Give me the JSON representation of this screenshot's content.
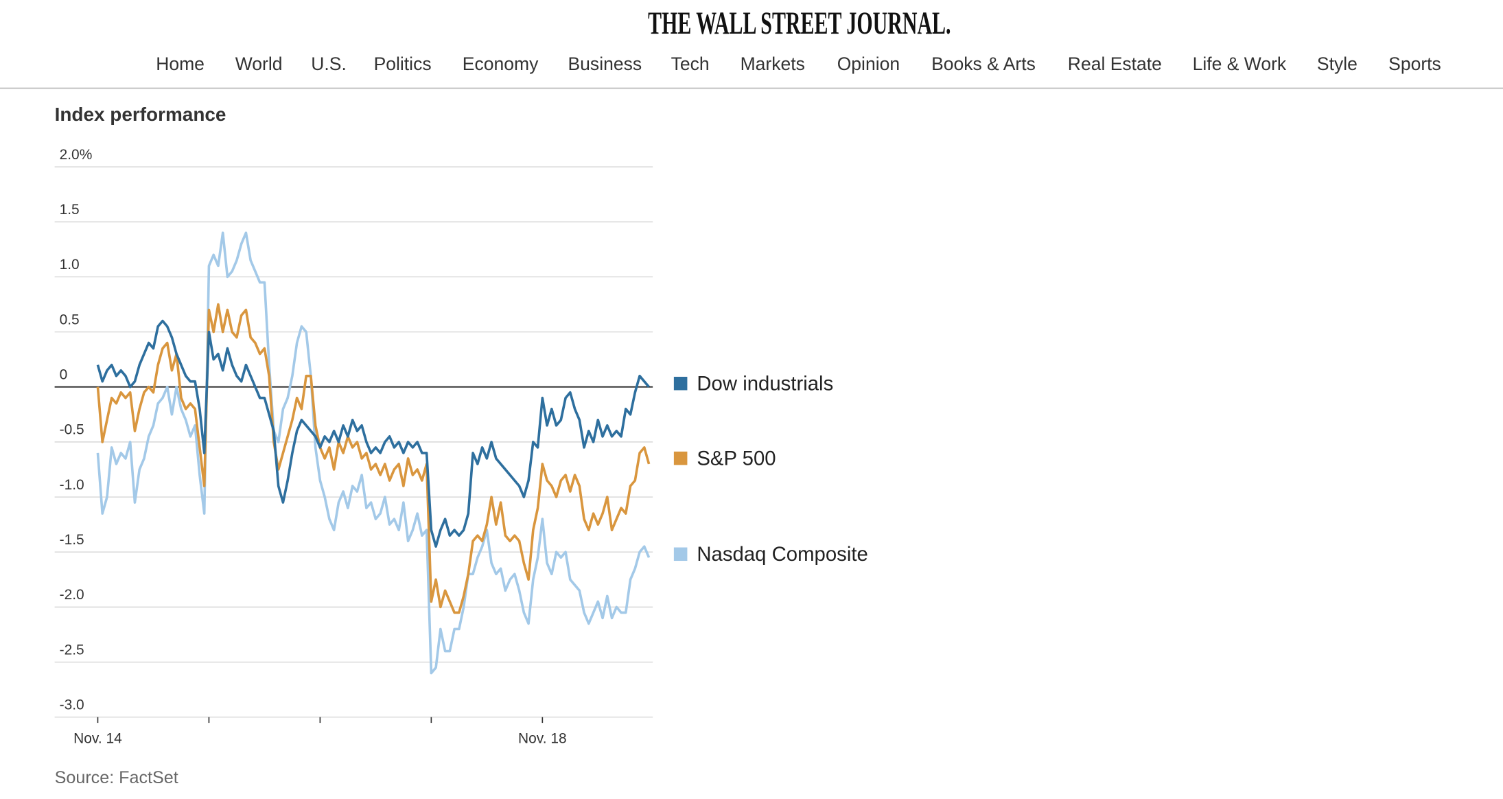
{
  "header": {
    "masthead": "THE WALL STREET JOURNAL.",
    "nav": [
      "Home",
      "World",
      "U.S.",
      "Politics",
      "Economy",
      "Business",
      "Tech",
      "Markets",
      "Opinion",
      "Books & Arts",
      "Real Estate",
      "Life & Work",
      "Style",
      "Sports"
    ]
  },
  "chart_data": {
    "type": "line",
    "title": "Index performance",
    "source": "Source: FactSet",
    "categories": [
      "Nov. 14",
      null,
      null,
      null,
      null,
      null,
      null,
      null,
      null,
      null,
      null,
      null,
      null,
      null,
      null,
      null,
      null,
      null,
      null,
      null,
      null,
      null,
      null,
      null,
      null,
      null,
      null,
      null,
      null,
      null,
      null,
      null,
      null,
      null,
      null,
      null,
      null,
      null,
      null,
      null,
      null,
      null,
      null,
      null,
      null,
      null,
      null,
      null,
      null,
      null,
      null,
      null,
      null,
      null,
      null,
      null,
      null,
      null,
      null,
      null,
      null,
      null,
      null,
      null,
      null,
      null,
      null,
      null,
      null,
      null,
      null,
      null,
      null,
      null,
      null,
      null,
      null,
      null,
      null,
      null,
      null,
      null,
      null,
      null,
      null,
      null,
      null,
      null,
      null,
      null,
      null,
      null,
      null,
      null,
      null,
      null,
      "Nov. 18",
      null,
      null,
      null,
      null,
      null,
      null,
      null,
      null,
      null,
      null,
      null,
      null,
      null,
      null,
      null,
      null,
      null,
      null,
      null,
      null,
      null,
      null,
      null
    ],
    "series": [
      {
        "name": "Dow industrials",
        "color": "#2e6f9e",
        "values": [
          0.2,
          0.05,
          0.15,
          0.2,
          0.1,
          0.15,
          0.1,
          0.0,
          0.05,
          0.2,
          0.3,
          0.4,
          0.35,
          0.55,
          0.6,
          0.55,
          0.45,
          0.3,
          0.2,
          0.1,
          0.05,
          0.05,
          -0.2,
          -0.6,
          0.5,
          0.25,
          0.3,
          0.15,
          0.35,
          0.2,
          0.1,
          0.05,
          0.2,
          0.1,
          0.0,
          -0.1,
          -0.1,
          -0.25,
          -0.4,
          -0.9,
          -1.05,
          -0.85,
          -0.6,
          -0.4,
          -0.3,
          -0.35,
          -0.4,
          -0.45,
          -0.55,
          -0.45,
          -0.5,
          -0.4,
          -0.5,
          -0.35,
          -0.45,
          -0.3,
          -0.4,
          -0.35,
          -0.5,
          -0.6,
          -0.55,
          -0.6,
          -0.5,
          -0.45,
          -0.55,
          -0.5,
          -0.6,
          -0.5,
          -0.55,
          -0.5,
          -0.6,
          -0.6,
          -1.3,
          -1.45,
          -1.3,
          -1.2,
          -1.35,
          -1.3,
          -1.35,
          -1.3,
          -1.15,
          -0.6,
          -0.7,
          -0.55,
          -0.65,
          -0.5,
          -0.65,
          -0.7,
          -0.75,
          -0.8,
          -0.85,
          -0.9,
          -1.0,
          -0.85,
          -0.5,
          -0.55,
          -0.1,
          -0.35,
          -0.2,
          -0.35,
          -0.3,
          -0.1,
          -0.05,
          -0.2,
          -0.3,
          -0.55,
          -0.4,
          -0.5,
          -0.3,
          -0.45,
          -0.35,
          -0.45,
          -0.4,
          -0.45,
          -0.2,
          -0.25,
          -0.05,
          0.1,
          0.05,
          0
        ]
      },
      {
        "name": "S&P 500",
        "color": "#d9963e",
        "values": [
          0,
          -0.5,
          -0.3,
          -0.1,
          -0.15,
          -0.05,
          -0.1,
          -0.05,
          -0.4,
          -0.2,
          -0.05,
          0.0,
          -0.05,
          0.2,
          0.35,
          0.4,
          0.15,
          0.3,
          -0.1,
          -0.2,
          -0.15,
          -0.2,
          -0.55,
          -0.9,
          0.7,
          0.5,
          0.75,
          0.5,
          0.7,
          0.5,
          0.45,
          0.65,
          0.7,
          0.45,
          0.4,
          0.3,
          0.35,
          0.1,
          -0.5,
          -0.75,
          -0.6,
          -0.45,
          -0.3,
          -0.1,
          -0.2,
          0.1,
          0.1,
          -0.35,
          -0.55,
          -0.65,
          -0.55,
          -0.75,
          -0.5,
          -0.6,
          -0.45,
          -0.55,
          -0.5,
          -0.65,
          -0.6,
          -0.75,
          -0.7,
          -0.8,
          -0.7,
          -0.85,
          -0.75,
          -0.7,
          -0.9,
          -0.65,
          -0.8,
          -0.75,
          -0.85,
          -0.7,
          -1.95,
          -1.75,
          -2.0,
          -1.85,
          -1.95,
          -2.05,
          -2.05,
          -1.9,
          -1.7,
          -1.4,
          -1.35,
          -1.4,
          -1.25,
          -1.0,
          -1.25,
          -1.05,
          -1.35,
          -1.4,
          -1.35,
          -1.4,
          -1.6,
          -1.75,
          -1.3,
          -1.1,
          -0.7,
          -0.85,
          -0.9,
          -1.0,
          -0.85,
          -0.8,
          -0.95,
          -0.8,
          -0.9,
          -1.2,
          -1.3,
          -1.15,
          -1.25,
          -1.15,
          -1.0,
          -1.3,
          -1.2,
          -1.1,
          -1.15,
          -0.9,
          -0.85,
          -0.6,
          -0.55,
          -0.7
        ]
      },
      {
        "name": "Nasdaq Composite",
        "color": "#a3c9e8",
        "values": [
          -0.6,
          -1.15,
          -1.0,
          -0.55,
          -0.7,
          -0.6,
          -0.65,
          -0.5,
          -1.05,
          -0.75,
          -0.65,
          -0.45,
          -0.35,
          -0.15,
          -0.1,
          0.0,
          -0.25,
          0.0,
          -0.2,
          -0.3,
          -0.45,
          -0.35,
          -0.8,
          -1.15,
          1.1,
          1.2,
          1.1,
          1.4,
          1.0,
          1.05,
          1.15,
          1.3,
          1.4,
          1.15,
          1.05,
          0.95,
          0.95,
          0.2,
          -0.4,
          -0.5,
          -0.2,
          -0.1,
          0.1,
          0.4,
          0.55,
          0.5,
          0.1,
          -0.55,
          -0.85,
          -1.0,
          -1.2,
          -1.3,
          -1.05,
          -0.95,
          -1.1,
          -0.9,
          -0.95,
          -0.8,
          -1.1,
          -1.05,
          -1.2,
          -1.15,
          -1.0,
          -1.25,
          -1.2,
          -1.3,
          -1.05,
          -1.4,
          -1.3,
          -1.15,
          -1.35,
          -1.3,
          -2.6,
          -2.55,
          -2.2,
          -2.4,
          -2.4,
          -2.2,
          -2.2,
          -2.0,
          -1.7,
          -1.7,
          -1.55,
          -1.45,
          -1.3,
          -1.6,
          -1.7,
          -1.65,
          -1.85,
          -1.75,
          -1.7,
          -1.85,
          -2.05,
          -2.15,
          -1.75,
          -1.55,
          -1.2,
          -1.6,
          -1.7,
          -1.5,
          -1.55,
          -1.5,
          -1.75,
          -1.8,
          -1.85,
          -2.05,
          -2.15,
          -2.05,
          -1.95,
          -2.1,
          -1.9,
          -2.1,
          -2.0,
          -2.05,
          -2.05,
          -1.75,
          -1.65,
          -1.5,
          -1.45,
          -1.55
        ]
      }
    ],
    "ylim": [
      -3,
      2
    ],
    "yticks": [
      {
        "value": 2,
        "label": "2.0%"
      },
      1.5,
      {
        "value": 1,
        "label": "1.0"
      },
      0.5,
      0,
      -0.5,
      {
        "value": -1,
        "label": "-1.0"
      },
      -1.5,
      {
        "value": -2,
        "label": "-2.0"
      },
      -2.5,
      {
        "value": -3,
        "label": "-3.0"
      }
    ],
    "grid": true
  }
}
